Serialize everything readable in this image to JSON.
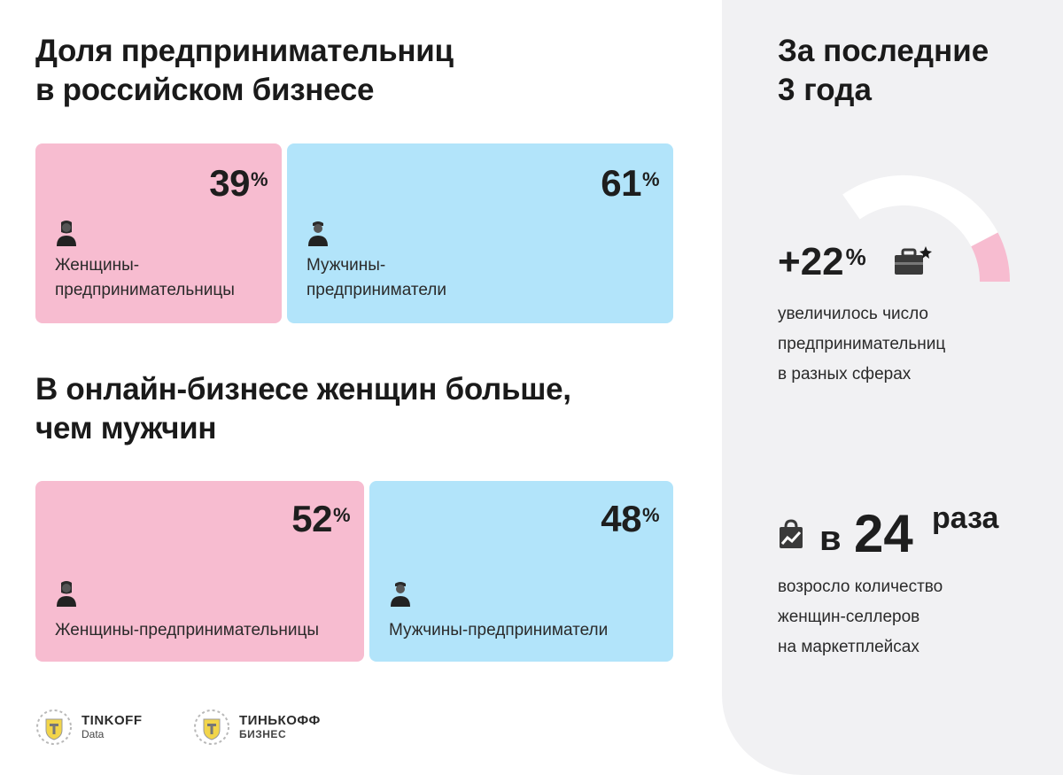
{
  "section1": {
    "title_lines": [
      "Доля предпринимательниц",
      "в российском бизнесе"
    ],
    "women": {
      "value": "39",
      "unit": "%",
      "label_lines": [
        "Женщины-",
        "предпринимательницы"
      ]
    },
    "men": {
      "value": "61",
      "unit": "%",
      "label_lines": [
        "Мужчины-",
        "предприниматели"
      ]
    }
  },
  "section2": {
    "title_lines": [
      "В онлайн-бизнесе женщин больше,",
      "чем мужчин"
    ],
    "women": {
      "value": "52",
      "unit": "%",
      "label": "Женщины-предпринимательницы"
    },
    "men": {
      "value": "48",
      "unit": "%",
      "label": "Мужчины-предприниматели"
    }
  },
  "side": {
    "title_lines": [
      "За последние",
      "3 года"
    ],
    "stat1": {
      "value": "+22",
      "unit": "%",
      "text_lines": [
        "увеличилось число",
        "предпринимательниц",
        "в разных сферах"
      ]
    },
    "stat2": {
      "prefix": "в",
      "value": "24",
      "suffix": "раза",
      "text_lines": [
        "возросло количество",
        "женщин-селлеров",
        "на маркетплейсах"
      ]
    }
  },
  "logos": {
    "logo1": {
      "name": "TINKOFF",
      "sub": "Data"
    },
    "logo2": {
      "name": "ТИНЬКОФФ",
      "sub": "БИЗНЕС"
    }
  },
  "colors": {
    "pink": "#f7bcd0",
    "blue": "#b2e4fa",
    "side_bg": "#f1f1f3"
  },
  "chart_data": [
    {
      "type": "bar",
      "title": "Доля предпринимательниц в российском бизнесе",
      "categories": [
        "Женщины-предпринимательницы",
        "Мужчины-предприниматели"
      ],
      "values": [
        39,
        61
      ],
      "unit": "%"
    },
    {
      "type": "bar",
      "title": "В онлайн-бизнесе женщин больше, чем мужчин",
      "categories": [
        "Женщины-предпринимательницы",
        "Мужчины-предприниматели"
      ],
      "values": [
        52,
        48
      ],
      "unit": "%"
    },
    {
      "type": "gauge",
      "title": "За последние 3 года",
      "value": 22,
      "unit": "%"
    }
  ]
}
